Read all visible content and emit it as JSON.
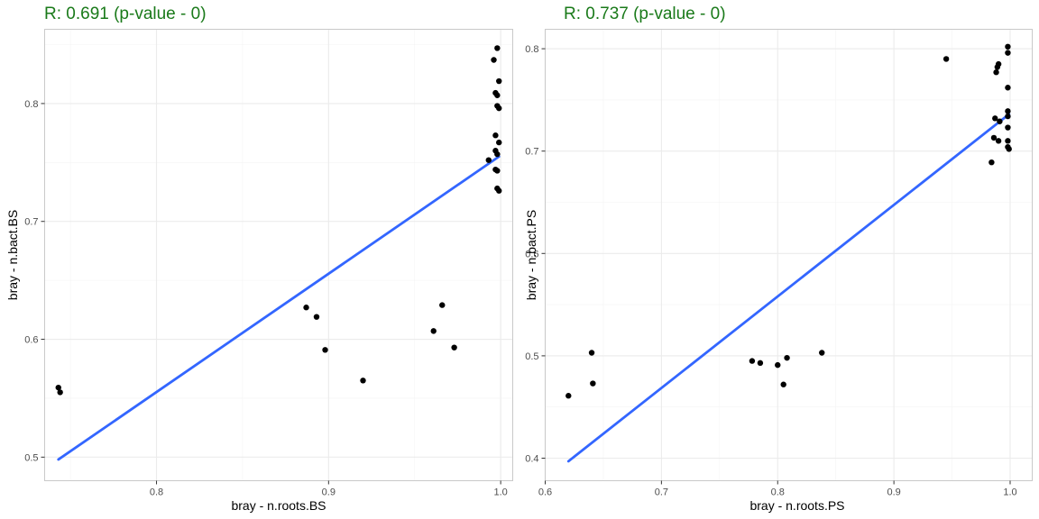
{
  "colors": {
    "title": "#1a7a1a",
    "point": "#000000",
    "line": "#3366ff",
    "grid": "#ebebeb",
    "border": "#c9c9c9"
  },
  "chart_data": [
    {
      "type": "scatter",
      "title": "R: 0.691 (p-value - 0)",
      "xlabel": "bray - n.roots.BS",
      "ylabel": "bray - n.bact.BS",
      "xlim": [
        0.735,
        1.007
      ],
      "ylim": [
        0.48,
        0.863
      ],
      "xticks": [
        0.8,
        0.9,
        1.0
      ],
      "xtick_labels": [
        "0.8",
        "0.9",
        "1.0"
      ],
      "yticks": [
        0.5,
        0.6,
        0.7,
        0.8
      ],
      "ytick_labels": [
        "0.5",
        "0.6",
        "0.7",
        "0.8"
      ],
      "grid": true,
      "points": [
        {
          "x": 0.743,
          "y": 0.559
        },
        {
          "x": 0.744,
          "y": 0.555
        },
        {
          "x": 0.887,
          "y": 0.627
        },
        {
          "x": 0.893,
          "y": 0.619
        },
        {
          "x": 0.898,
          "y": 0.591
        },
        {
          "x": 0.92,
          "y": 0.565
        },
        {
          "x": 0.961,
          "y": 0.607
        },
        {
          "x": 0.966,
          "y": 0.629
        },
        {
          "x": 0.973,
          "y": 0.593
        },
        {
          "x": 0.993,
          "y": 0.752
        },
        {
          "x": 0.996,
          "y": 0.837
        },
        {
          "x": 0.997,
          "y": 0.809
        },
        {
          "x": 0.997,
          "y": 0.773
        },
        {
          "x": 0.997,
          "y": 0.76
        },
        {
          "x": 0.997,
          "y": 0.744
        },
        {
          "x": 0.998,
          "y": 0.847
        },
        {
          "x": 0.998,
          "y": 0.807
        },
        {
          "x": 0.998,
          "y": 0.798
        },
        {
          "x": 0.998,
          "y": 0.757
        },
        {
          "x": 0.998,
          "y": 0.743
        },
        {
          "x": 0.998,
          "y": 0.728
        },
        {
          "x": 0.999,
          "y": 0.819
        },
        {
          "x": 0.999,
          "y": 0.796
        },
        {
          "x": 0.999,
          "y": 0.767
        },
        {
          "x": 0.999,
          "y": 0.726
        }
      ],
      "fit_line": {
        "x": [
          0.743,
          0.999
        ],
        "y": [
          0.498,
          0.755
        ]
      }
    },
    {
      "type": "scatter",
      "title": "R: 0.737 (p-value - 0)",
      "xlabel": "bray - n.roots.PS",
      "ylabel": "bray - n.bact.PS",
      "xlim": [
        0.6,
        1.019
      ],
      "ylim": [
        0.378,
        0.819
      ],
      "xticks": [
        0.6,
        0.7,
        0.8,
        0.9,
        1.0
      ],
      "xtick_labels": [
        "0.6",
        "0.7",
        "0.8",
        "0.9",
        "1.0"
      ],
      "yticks": [
        0.4,
        0.5,
        0.6,
        0.7,
        0.8
      ],
      "ytick_labels": [
        "0.4",
        "0.5",
        "0.6",
        "0.7",
        "0.8"
      ],
      "grid": true,
      "points": [
        {
          "x": 0.62,
          "y": 0.461
        },
        {
          "x": 0.64,
          "y": 0.503
        },
        {
          "x": 0.641,
          "y": 0.473
        },
        {
          "x": 0.778,
          "y": 0.495
        },
        {
          "x": 0.785,
          "y": 0.493
        },
        {
          "x": 0.8,
          "y": 0.491
        },
        {
          "x": 0.805,
          "y": 0.472
        },
        {
          "x": 0.808,
          "y": 0.498
        },
        {
          "x": 0.838,
          "y": 0.503
        },
        {
          "x": 0.945,
          "y": 0.79
        },
        {
          "x": 0.984,
          "y": 0.689
        },
        {
          "x": 0.986,
          "y": 0.713
        },
        {
          "x": 0.987,
          "y": 0.732
        },
        {
          "x": 0.988,
          "y": 0.777
        },
        {
          "x": 0.989,
          "y": 0.782
        },
        {
          "x": 0.99,
          "y": 0.785
        },
        {
          "x": 0.99,
          "y": 0.71
        },
        {
          "x": 0.991,
          "y": 0.729
        },
        {
          "x": 0.998,
          "y": 0.802
        },
        {
          "x": 0.998,
          "y": 0.796
        },
        {
          "x": 0.998,
          "y": 0.762
        },
        {
          "x": 0.998,
          "y": 0.739
        },
        {
          "x": 0.998,
          "y": 0.734
        },
        {
          "x": 0.998,
          "y": 0.723
        },
        {
          "x": 0.998,
          "y": 0.71
        },
        {
          "x": 0.998,
          "y": 0.704
        },
        {
          "x": 0.999,
          "y": 0.702
        }
      ],
      "fit_line": {
        "x": [
          0.62,
          0.999
        ],
        "y": [
          0.397,
          0.736
        ]
      }
    }
  ]
}
